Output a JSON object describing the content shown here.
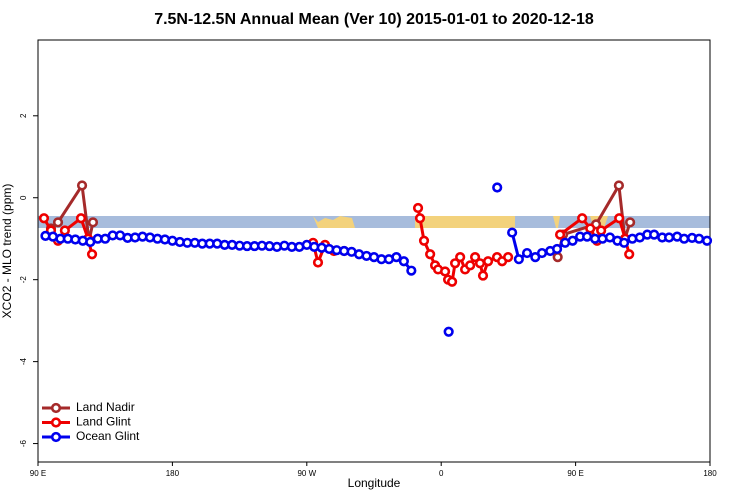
{
  "chart_data": {
    "type": "line",
    "title": "7.5N-12.5N Annual Mean (Ver 10)   2015-01-01 to 2020-12-18",
    "xlabel": "Longitude",
    "ylabel": "XCO2 - MLO trend (ppm)",
    "xlim": [
      90,
      540
    ],
    "ylim": [
      -6.45,
      3.85
    ],
    "xticks": [
      {
        "value": 90,
        "label": "90 E"
      },
      180,
      {
        "value": 270,
        "label": "90 W"
      },
      {
        "value": 360,
        "label": "0"
      },
      {
        "value": 450,
        "label": "90 E"
      },
      {
        "value": 540,
        "label": "180"
      }
    ],
    "yticks": [
      2,
      0,
      -2,
      -4,
      -6
    ],
    "legend": "bottom-left",
    "series": [
      {
        "name": "Land Nadir",
        "color": "#a52a2a",
        "x": [
          98.7,
          103.4,
          119.5,
          124.2,
          126.8,
          200,
          295,
          380,
          438,
          441.6,
          463.7,
          479,
          483,
          486.5
        ],
        "values": [
          -0.75,
          -0.6,
          0.3,
          -1.05,
          -0.6,
          null,
          -1.3,
          null,
          -1.45,
          -0.9,
          -0.65,
          0.3,
          -1.0,
          -0.6
        ]
      },
      {
        "name": "Land Glint",
        "color": "#ee0000",
        "x": [
          94,
          98.7,
          103.4,
          108,
          118.8,
          123.5,
          126.2,
          200,
          274.2,
          277.5,
          282.2,
          288.2,
          320,
          344.5,
          345.8,
          348.5,
          352.6,
          355.9,
          357.9,
          362.6,
          364.6,
          367.3,
          369.3,
          372.7,
          376,
          379.4,
          382.7,
          386,
          388,
          391.4,
          397.4,
          400.8,
          404.8,
          420,
          439.6,
          454.4,
          459.8,
          464.4,
          467.1,
          479.2,
          483.2,
          485.9
        ],
        "values": [
          -0.5,
          -0.8,
          -1.05,
          -0.8,
          -0.5,
          -1.0,
          -1.38,
          null,
          -1.1,
          -1.58,
          -1.15,
          -1.3,
          null,
          -0.25,
          -0.5,
          -1.05,
          -1.38,
          -1.65,
          -1.75,
          -1.8,
          -2.0,
          -2.05,
          -1.6,
          -1.45,
          -1.75,
          -1.65,
          -1.45,
          -1.6,
          -1.9,
          -1.55,
          -1.45,
          -1.55,
          -1.45,
          null,
          -0.9,
          -0.5,
          -0.75,
          -1.05,
          -0.8,
          -0.5,
          -1.0,
          -1.38
        ]
      },
      {
        "name": "Ocean Glint",
        "color": "#0000ee",
        "x": [
          95,
          100,
          105,
          110,
          115,
          120,
          125,
          130,
          135,
          140,
          145,
          150,
          155,
          160,
          165,
          170,
          175,
          180,
          185,
          190,
          195,
          200,
          205,
          210,
          215,
          220,
          225,
          230,
          235,
          240,
          245,
          250,
          255,
          260,
          265,
          270,
          275,
          280,
          285,
          290,
          295,
          300,
          305,
          310,
          315,
          320,
          325,
          330,
          335,
          340,
          352,
          365,
          380,
          397.5,
          401,
          407.5,
          412,
          417.5,
          423,
          427.5,
          433,
          437.6,
          443,
          448,
          453,
          457.7,
          463,
          468,
          473,
          478,
          482.5,
          488,
          493,
          498,
          502.6,
          508,
          512.6,
          518,
          522.7,
          528,
          532.7,
          538
        ],
        "values": [
          -0.93,
          -0.95,
          -1.0,
          -1.0,
          -1.02,
          -1.05,
          -1.08,
          -1.0,
          -1.0,
          -0.92,
          -0.92,
          -0.98,
          -0.97,
          -0.95,
          -0.97,
          -1.0,
          -1.02,
          -1.05,
          -1.08,
          -1.1,
          -1.1,
          -1.12,
          -1.12,
          -1.12,
          -1.15,
          -1.15,
          -1.17,
          -1.18,
          -1.18,
          -1.17,
          -1.18,
          -1.2,
          -1.17,
          -1.2,
          -1.2,
          -1.15,
          -1.2,
          -1.22,
          -1.25,
          -1.28,
          -1.3,
          -1.32,
          -1.38,
          -1.42,
          -1.45,
          -1.5,
          -1.5,
          -1.45,
          -1.55,
          -1.78,
          null,
          -3.27,
          null,
          0.25,
          null,
          -0.85,
          -1.5,
          -1.35,
          -1.45,
          -1.35,
          -1.3,
          -1.25,
          -1.1,
          -1.05,
          -0.95,
          -0.95,
          -1.0,
          -1.0,
          -0.97,
          -1.05,
          -1.1,
          -1.0,
          -0.97,
          -0.9,
          -0.9,
          -0.97,
          -0.97,
          -0.95,
          -1.0,
          -0.98,
          -1.0,
          -1.05
        ]
      }
    ]
  }
}
